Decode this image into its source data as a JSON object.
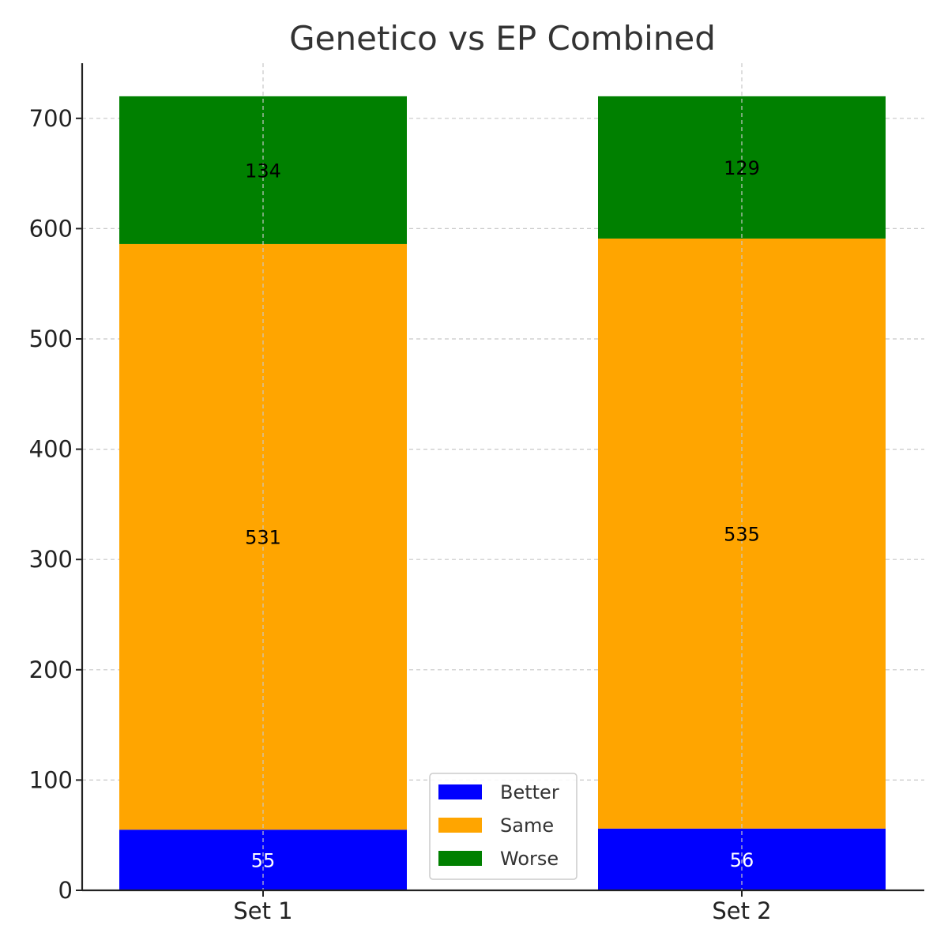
{
  "chart_data": {
    "type": "bar",
    "stacked": true,
    "title": "Genetico vs EP Combined",
    "xlabel": "",
    "ylabel": "",
    "categories": [
      "Set 1",
      "Set 2"
    ],
    "series": [
      {
        "name": "Better",
        "values": [
          55,
          56
        ],
        "color": "#0000ff",
        "label_color": "#ffffff"
      },
      {
        "name": "Same",
        "values": [
          531,
          535
        ],
        "color": "#ffa500",
        "label_color": "#000000"
      },
      {
        "name": "Worse",
        "values": [
          134,
          129
        ],
        "color": "#008000",
        "label_color": "#000000"
      }
    ],
    "ylim": [
      0,
      750
    ],
    "yticks": [
      0,
      100,
      200,
      300,
      400,
      500,
      600,
      700
    ],
    "grid": true,
    "legend_position": "lower-center"
  }
}
